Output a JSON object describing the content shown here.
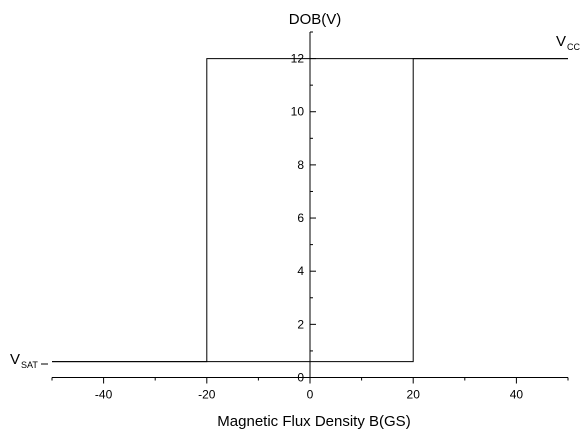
{
  "chart_data": {
    "type": "line",
    "title": "",
    "xlabel": "Magnetic Flux Density B(GS)",
    "ylabel": "DOB(V)",
    "xlim": [
      -50,
      50
    ],
    "ylim": [
      0,
      13
    ],
    "x_major_ticks": [
      -40,
      -20,
      0,
      20,
      40
    ],
    "x_tick_labels": [
      "-40",
      "-20",
      "0",
      "20",
      "40"
    ],
    "y_major_ticks": [
      0,
      2,
      4,
      6,
      8,
      10,
      12
    ],
    "y_tick_labels": [
      "0",
      "2",
      "4",
      "6",
      "8",
      "10",
      "12"
    ],
    "grid": false,
    "series": [
      {
        "x": [
          -50,
          -20,
          -20,
          50
        ],
        "y": [
          0.6,
          0.6,
          12,
          12
        ]
      },
      {
        "x": [
          -50,
          20,
          20,
          50
        ],
        "y": [
          0.6,
          0.6,
          12,
          12
        ]
      }
    ],
    "annotations": [
      {
        "id": "vcc",
        "main": "V",
        "sub": "CC"
      },
      {
        "id": "vsat",
        "main": "V",
        "sub": "SAT"
      }
    ]
  }
}
